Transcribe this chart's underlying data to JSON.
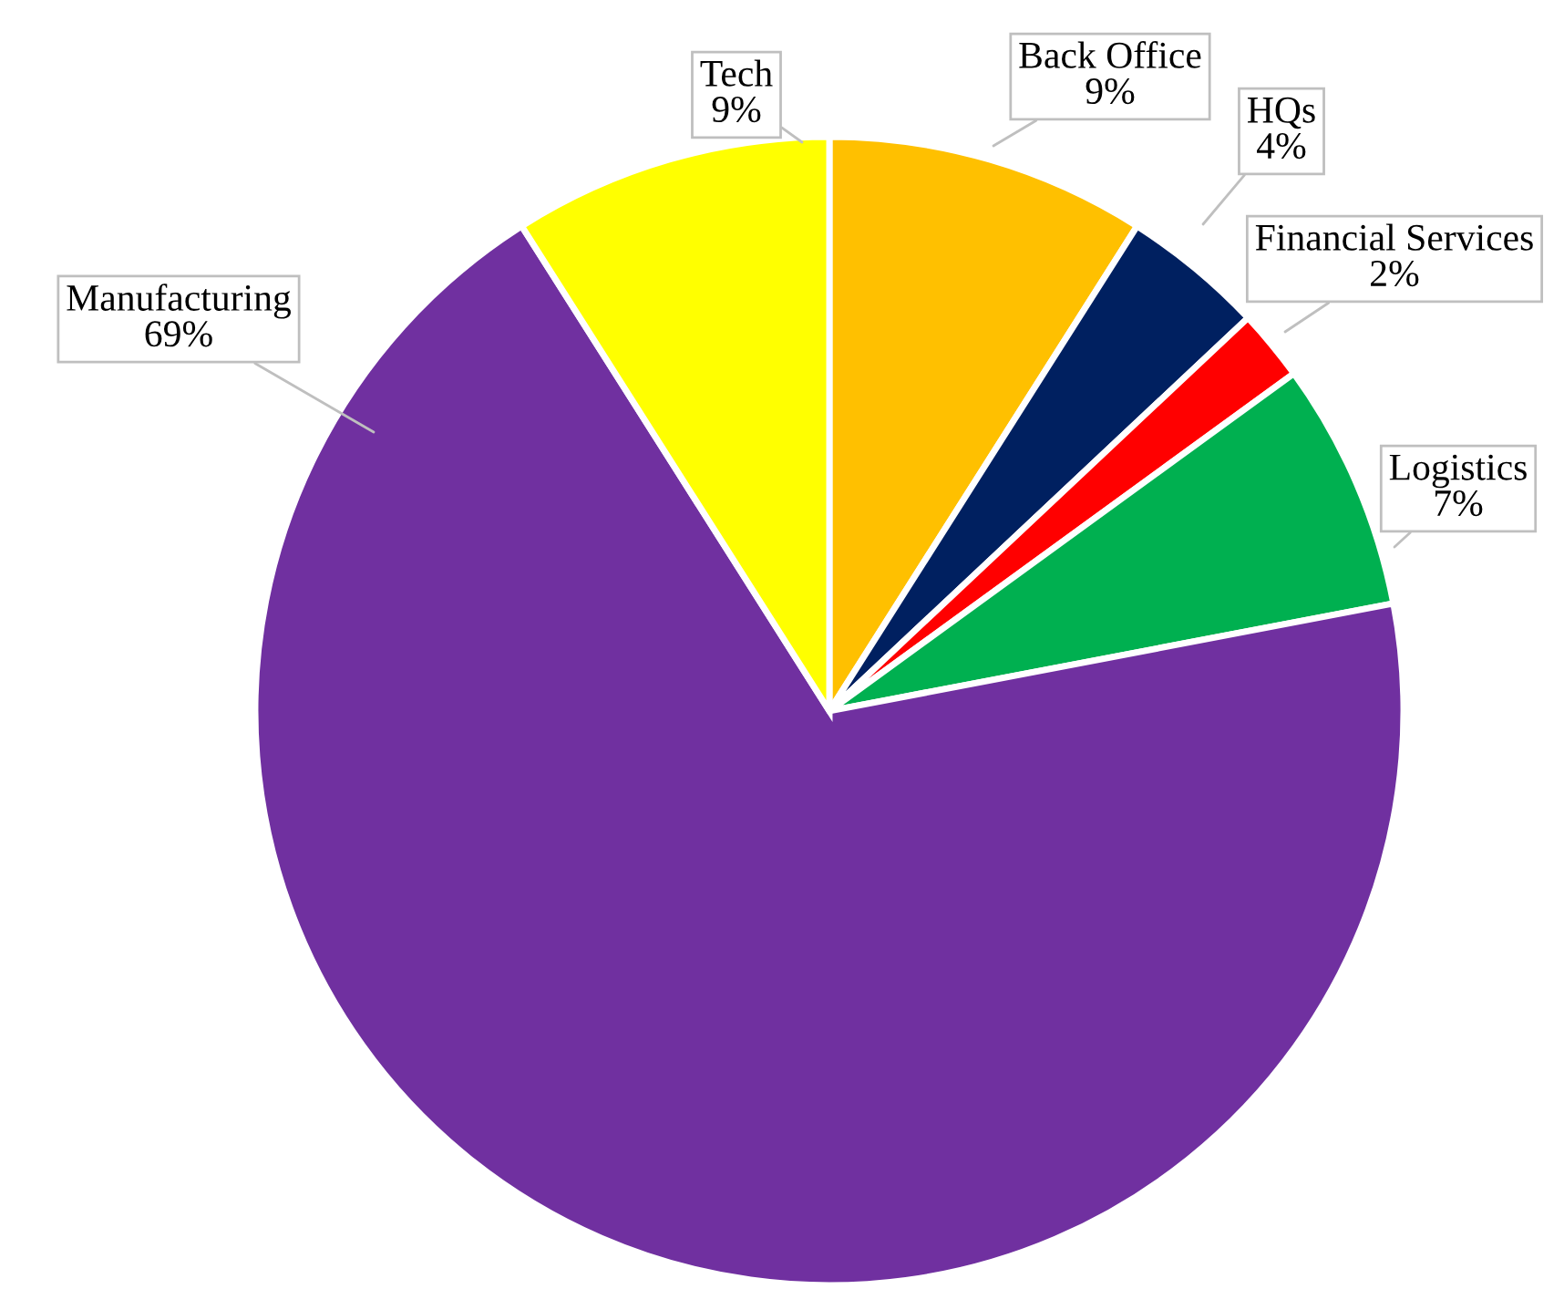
{
  "chart_data": {
    "type": "pie",
    "categories": [
      "Back Office",
      "HQs",
      "Financial Services",
      "Logistics",
      "Manufacturing",
      "Tech"
    ],
    "values": [
      9,
      4,
      2,
      7,
      69,
      9
    ],
    "colors": [
      "#ffc000",
      "#002060",
      "#ff0000",
      "#00b050",
      "#7030a0",
      "#ffff00"
    ],
    "value_labels": [
      "9%",
      "4%",
      "2%",
      "7%",
      "69%",
      "9%"
    ],
    "legend": false
  }
}
